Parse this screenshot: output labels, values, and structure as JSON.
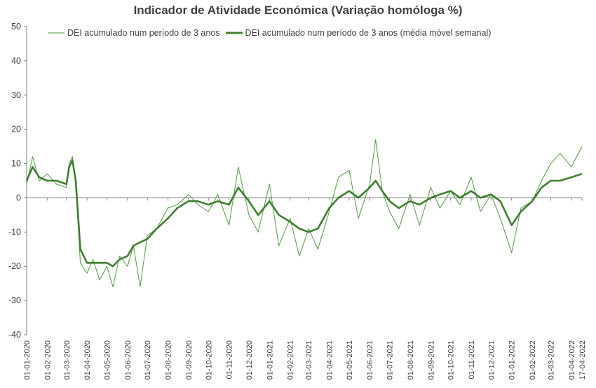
{
  "chart_data": {
    "type": "line",
    "title": "Indicador de Atividade Económica (Variação homóloga %)",
    "xlabel": "",
    "ylabel": "",
    "ylim": [
      -40,
      50
    ],
    "yticks": [
      50,
      40,
      30,
      20,
      10,
      0,
      -10,
      -20,
      -30,
      -40
    ],
    "xticks": [
      "01-01-2020",
      "01-02-2020",
      "01-03-2020",
      "01-04-2020",
      "01-05-2020",
      "01-06-2020",
      "01-07-2020",
      "01-08-2020",
      "01-09-2020",
      "01-10-2020",
      "01-11-2020",
      "01-12-2020",
      "01-01-2021",
      "01-02-2021",
      "01-03-2021",
      "01-04-2021",
      "01-05-2021",
      "01-06-2021",
      "01-07-2021",
      "01-08-2021",
      "01-09-2021",
      "01-10-2021",
      "01-11-2021",
      "01-12-2021",
      "01-01-2022",
      "01-02-2022",
      "01-03-2022",
      "01-04-2022",
      "17-04-2022"
    ],
    "grid": false,
    "legend_position": "top",
    "series": [
      {
        "name": "DEI acumulado num período de 3 anos",
        "color": "#4e9a3e",
        "x": [
          "01-01-2020",
          "10-01-2020",
          "20-01-2020",
          "01-02-2020",
          "15-02-2020",
          "01-03-2020",
          "05-03-2020",
          "10-03-2020",
          "15-03-2020",
          "22-03-2020",
          "01-04-2020",
          "10-04-2020",
          "20-04-2020",
          "01-05-2020",
          "10-05-2020",
          "20-05-2020",
          "01-06-2020",
          "10-06-2020",
          "20-06-2020",
          "01-07-2020",
          "15-07-2020",
          "01-08-2020",
          "15-08-2020",
          "01-09-2020",
          "15-09-2020",
          "01-10-2020",
          "15-10-2020",
          "01-11-2020",
          "15-11-2020",
          "01-12-2020",
          "15-12-2020",
          "01-01-2021",
          "15-01-2021",
          "01-02-2021",
          "15-02-2021",
          "01-03-2021",
          "15-03-2021",
          "01-04-2021",
          "15-04-2021",
          "01-05-2021",
          "15-05-2021",
          "01-06-2021",
          "10-06-2021",
          "20-06-2021",
          "01-07-2021",
          "15-07-2021",
          "01-08-2021",
          "15-08-2021",
          "01-09-2021",
          "15-09-2021",
          "01-10-2021",
          "15-10-2021",
          "01-11-2021",
          "15-11-2021",
          "01-12-2021",
          "15-12-2021",
          "01-01-2022",
          "15-01-2022",
          "01-02-2022",
          "15-02-2022",
          "01-03-2022",
          "15-03-2022",
          "01-04-2022",
          "17-04-2022"
        ],
        "values": [
          4,
          12,
          5,
          7,
          4,
          3,
          10,
          12,
          4,
          -19,
          -22,
          -18,
          -24,
          -20,
          -26,
          -17,
          -20,
          -14,
          -26,
          -11,
          -9,
          -3,
          -2,
          1,
          -2,
          -4,
          1,
          -8,
          9,
          -5,
          -10,
          4,
          -14,
          -6,
          -17,
          -9,
          -15,
          -4,
          6,
          8,
          -6,
          4,
          17,
          2,
          -4,
          -9,
          1,
          -8,
          3,
          -3,
          2,
          -2,
          6,
          -4,
          1,
          -6,
          -16,
          -3,
          -1,
          5,
          10,
          13,
          9,
          15
        ]
      },
      {
        "name": "DEI acumulado num período de 3 anos (média móvel semanal)",
        "color": "#3d7f2f",
        "x": [
          "01-01-2020",
          "10-01-2020",
          "20-01-2020",
          "01-02-2020",
          "15-02-2020",
          "01-03-2020",
          "05-03-2020",
          "10-03-2020",
          "15-03-2020",
          "22-03-2020",
          "01-04-2020",
          "10-04-2020",
          "20-04-2020",
          "01-05-2020",
          "10-05-2020",
          "20-05-2020",
          "01-06-2020",
          "10-06-2020",
          "20-06-2020",
          "01-07-2020",
          "15-07-2020",
          "01-08-2020",
          "15-08-2020",
          "01-09-2020",
          "15-09-2020",
          "01-10-2020",
          "15-10-2020",
          "01-11-2020",
          "15-11-2020",
          "01-12-2020",
          "15-12-2020",
          "01-01-2021",
          "15-01-2021",
          "01-02-2021",
          "15-02-2021",
          "01-03-2021",
          "15-03-2021",
          "01-04-2021",
          "15-04-2021",
          "01-05-2021",
          "15-05-2021",
          "01-06-2021",
          "10-06-2021",
          "20-06-2021",
          "01-07-2021",
          "15-07-2021",
          "01-08-2021",
          "15-08-2021",
          "01-09-2021",
          "15-09-2021",
          "01-10-2021",
          "15-10-2021",
          "01-11-2021",
          "15-11-2021",
          "01-12-2021",
          "15-12-2021",
          "01-01-2022",
          "15-01-2022",
          "01-02-2022",
          "15-02-2022",
          "01-03-2022",
          "15-03-2022",
          "01-04-2022",
          "17-04-2022"
        ],
        "values": [
          5,
          9,
          6,
          5,
          5,
          4,
          9,
          11,
          5,
          -15,
          -19,
          -19,
          -19,
          -19,
          -20,
          -18,
          -17,
          -14,
          -13,
          -12,
          -9,
          -6,
          -3,
          -1,
          -1,
          -2,
          -1,
          -2,
          3,
          -1,
          -5,
          -1,
          -5,
          -7,
          -9,
          -10,
          -9,
          -3,
          0,
          2,
          0,
          3,
          5,
          2,
          -1,
          -3,
          -1,
          -2,
          0,
          1,
          2,
          0,
          2,
          0,
          1,
          -1,
          -8,
          -4,
          -1,
          3,
          5,
          5,
          6,
          7
        ]
      }
    ]
  }
}
